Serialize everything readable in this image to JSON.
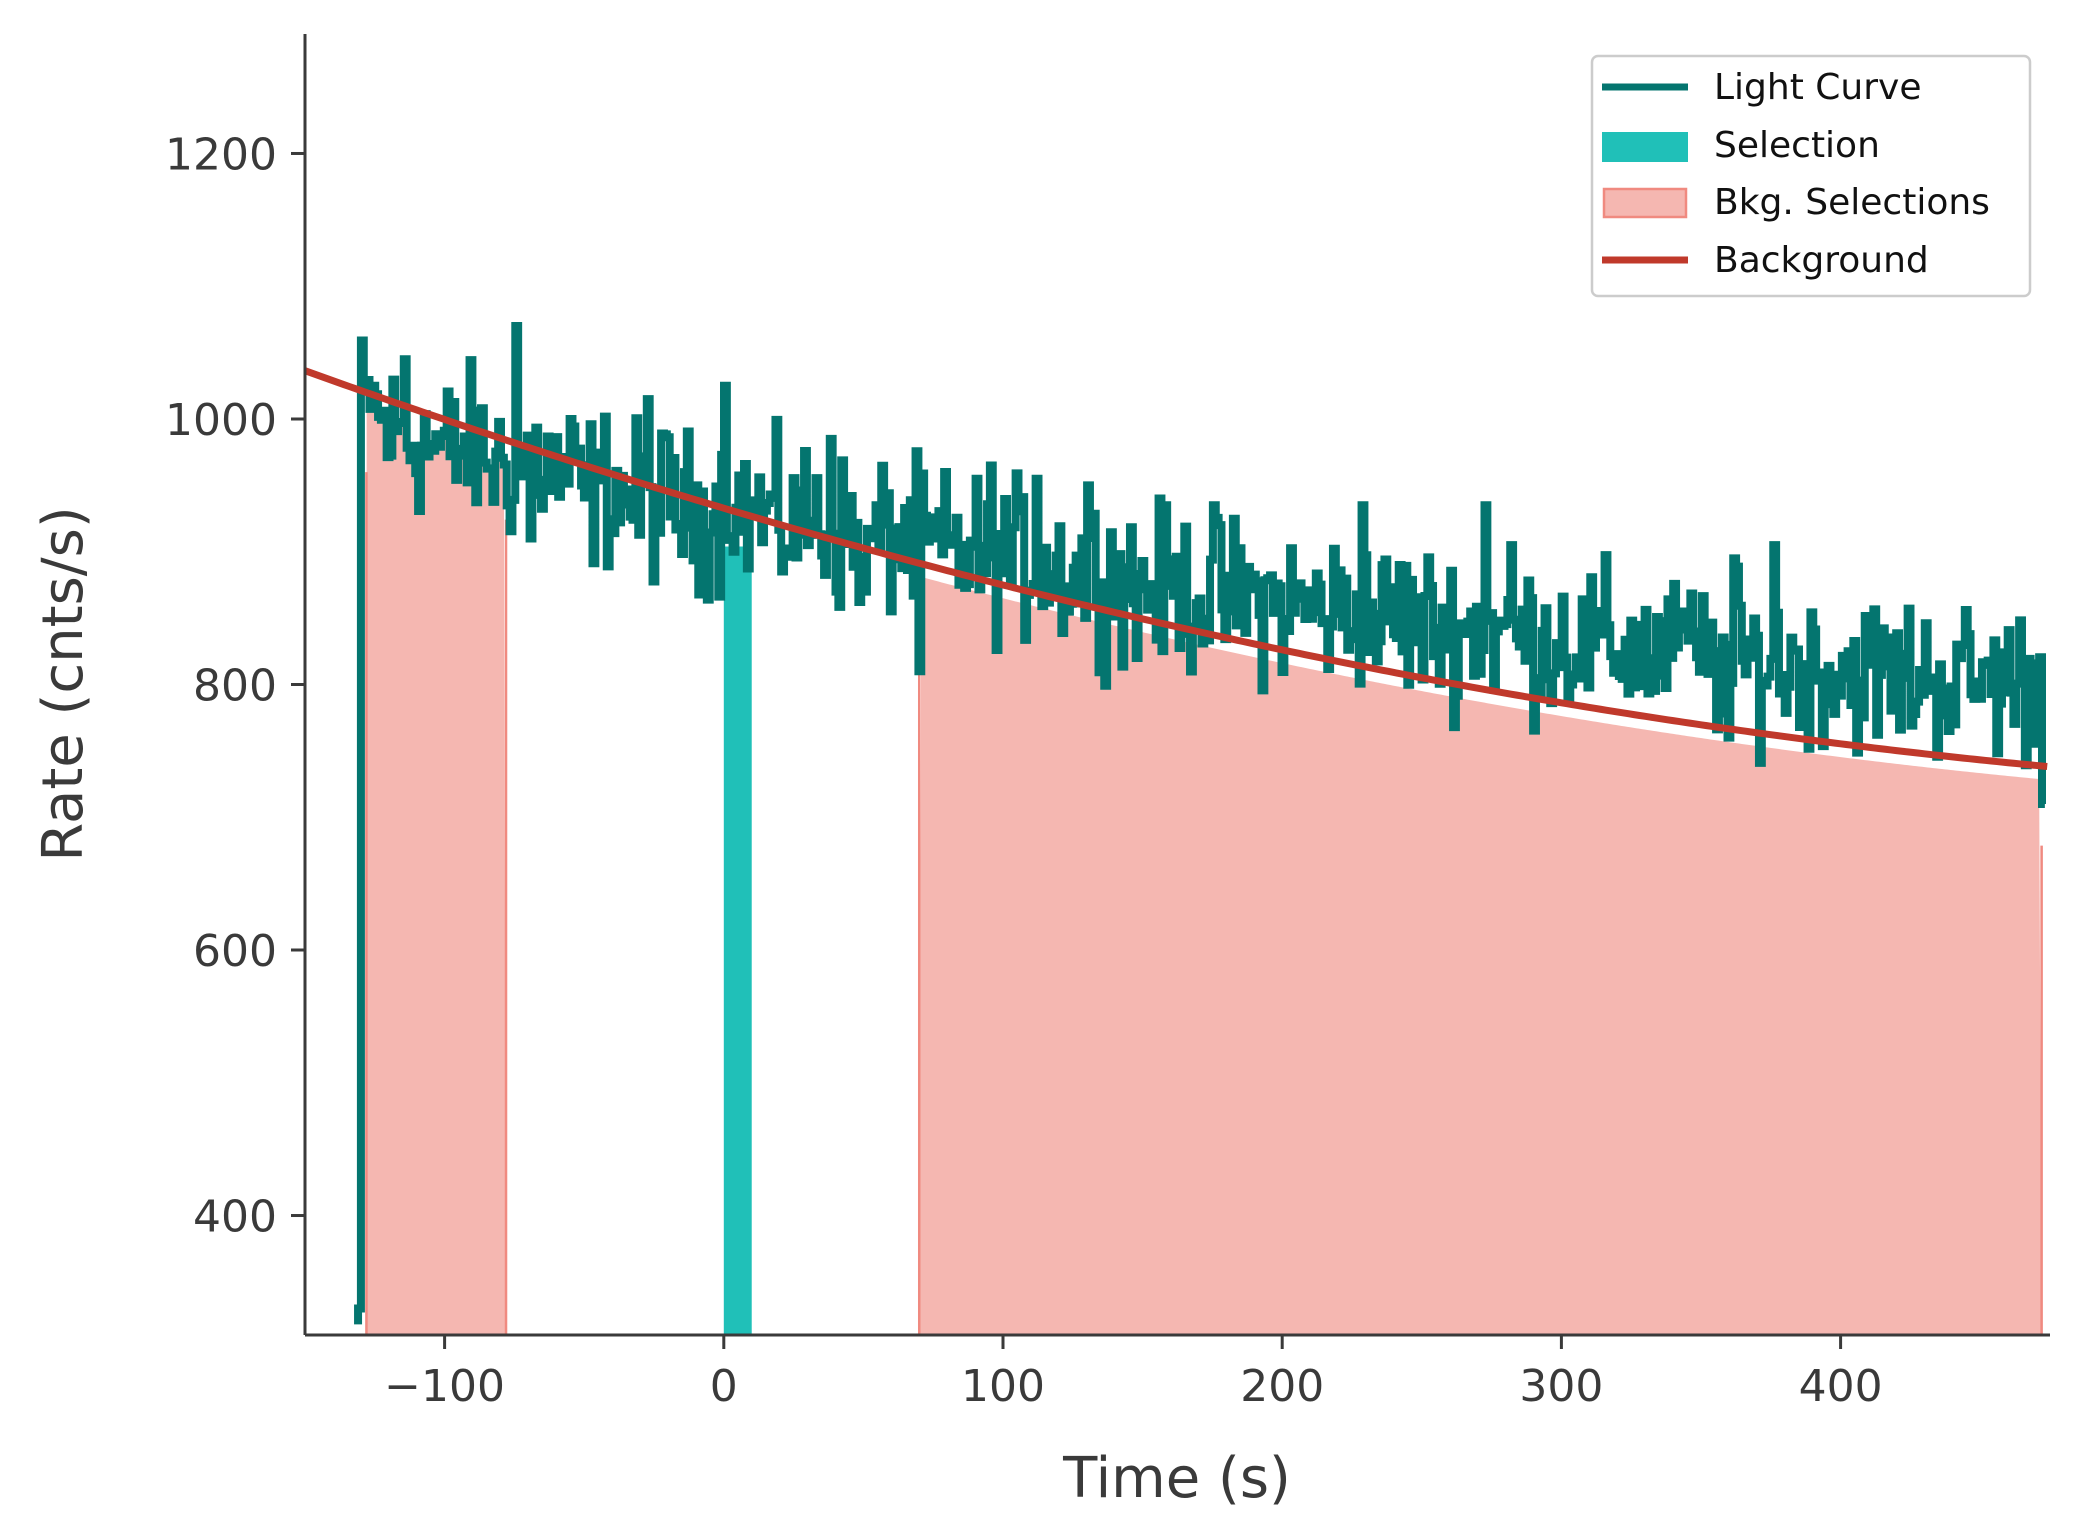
{
  "chart_data": {
    "type": "line",
    "xlabel": "Time (s)",
    "ylabel": "Rate (cnts/s)",
    "xlim": [
      -150,
      475
    ],
    "ylim": [
      310,
      1290
    ],
    "xticks": [
      -100,
      0,
      100,
      200,
      300,
      400
    ],
    "xtick_labels": [
      "−100",
      "0",
      "100",
      "200",
      "300",
      "400"
    ],
    "yticks": [
      400,
      600,
      800,
      1000,
      1200
    ],
    "ytick_labels": [
      "400",
      "600",
      "800",
      "1000",
      "1200"
    ],
    "grid": false,
    "legend_position": "top-right",
    "colors": {
      "light_curve": "#04756f",
      "selection": "#20c0b8",
      "bkg_fill": "#f5b7b1",
      "bkg_edge": "#f08a80",
      "background": "#c0392b",
      "axis": "#3a3a3a"
    },
    "light_curve": {
      "name": "Light Curve",
      "start": -131,
      "bin": 1.024,
      "start_value": 320,
      "anchors": [
        [
          -130,
          1010
        ],
        [
          -120,
          990
        ],
        [
          -110,
          985
        ],
        [
          -100,
          975
        ],
        [
          -90,
          980
        ],
        [
          -80,
          965
        ],
        [
          -70,
          970
        ],
        [
          -60,
          960
        ],
        [
          -50,
          945
        ],
        [
          -40,
          950
        ],
        [
          -30,
          935
        ],
        [
          -20,
          940
        ],
        [
          -10,
          925
        ],
        [
          0,
          935
        ],
        [
          10,
          930
        ],
        [
          20,
          920
        ],
        [
          30,
          925
        ],
        [
          40,
          915
        ],
        [
          50,
          910
        ],
        [
          60,
          912
        ],
        [
          70,
          905
        ],
        [
          80,
          900
        ],
        [
          90,
          898
        ],
        [
          100,
          895
        ],
        [
          120,
          888
        ],
        [
          140,
          880
        ],
        [
          160,
          872
        ],
        [
          180,
          865
        ],
        [
          200,
          860
        ],
        [
          220,
          855
        ],
        [
          240,
          848
        ],
        [
          260,
          843
        ],
        [
          280,
          838
        ],
        [
          300,
          833
        ],
        [
          320,
          828
        ],
        [
          340,
          822
        ],
        [
          360,
          818
        ],
        [
          380,
          815
        ],
        [
          400,
          811
        ],
        [
          420,
          807
        ],
        [
          440,
          804
        ],
        [
          460,
          802
        ],
        [
          472,
          800
        ]
      ],
      "spikes": [
        [
          -133,
          320
        ],
        [
          -132,
          330
        ],
        [
          -126,
          1025
        ],
        [
          -115,
          1045
        ],
        [
          -75,
          1070
        ],
        [
          -70,
          910
        ],
        [
          -55,
          1000
        ],
        [
          -28,
          1015
        ],
        [
          0,
          1025
        ],
        [
          3,
          900
        ],
        [
          38,
          985
        ],
        [
          50,
          870
        ],
        [
          70,
          810
        ],
        [
          95,
          965
        ],
        [
          112,
          955
        ],
        [
          130,
          950
        ],
        [
          148,
          820
        ],
        [
          175,
          935
        ],
        [
          195,
          880
        ],
        [
          228,
          935
        ],
        [
          242,
          890
        ],
        [
          272,
          935
        ],
        [
          282,
          905
        ],
        [
          342,
          845
        ],
        [
          360,
          760
        ],
        [
          362,
          895
        ],
        [
          376,
          905
        ],
        [
          472,
          710
        ]
      ]
    },
    "selection": {
      "name": "Selection",
      "x_range": [
        0,
        10
      ]
    },
    "bkg_selections": {
      "name": "Bkg. Selections",
      "ranges": [
        [
          -128,
          -78
        ],
        [
          70,
          472
        ]
      ]
    },
    "background": {
      "name": "Background",
      "model": "poly2",
      "coefficients": [
        932.8,
        -0.6233,
        0.000449
      ]
    }
  },
  "legend": {
    "items": [
      {
        "label": "Light Curve"
      },
      {
        "label": "Selection"
      },
      {
        "label": "Bkg. Selections"
      },
      {
        "label": "Background"
      }
    ]
  }
}
